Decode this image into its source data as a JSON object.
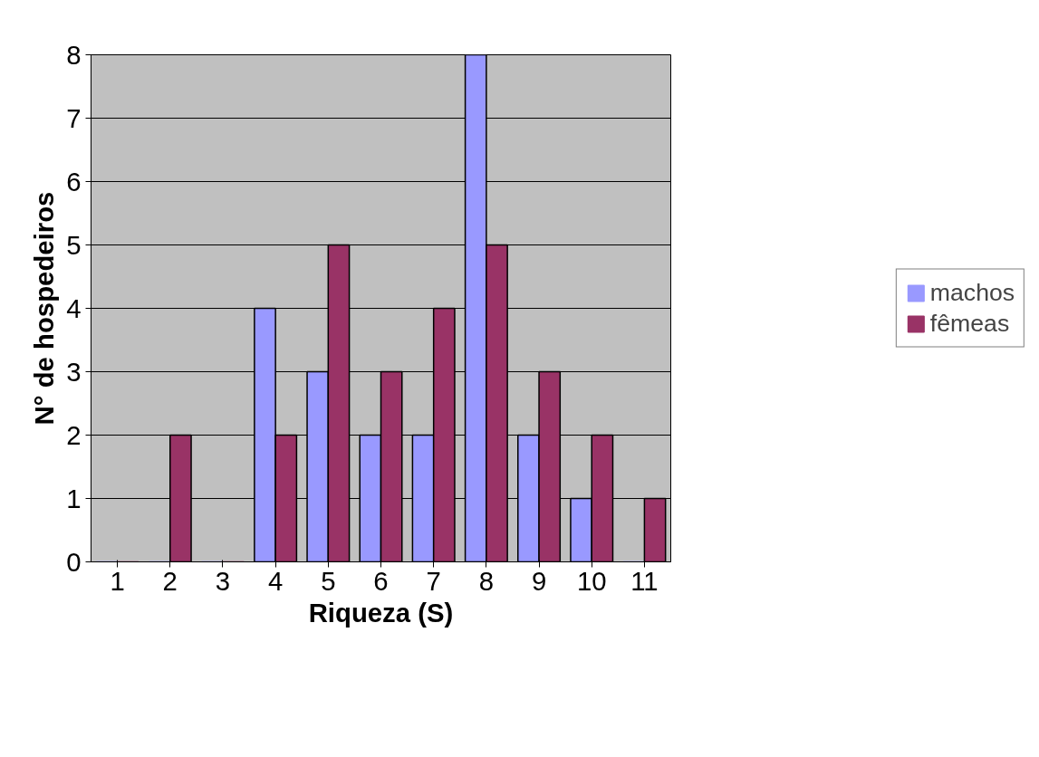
{
  "chart_data": {
    "type": "bar",
    "xlabel": "Riqueza (S)",
    "ylabel": "N° de hospedeiros",
    "categories": [
      "1",
      "2",
      "3",
      "4",
      "5",
      "6",
      "7",
      "8",
      "9",
      "10",
      "11"
    ],
    "series": [
      {
        "name": "machos",
        "color": "#9999ff",
        "values": [
          0,
          0,
          0,
          4,
          3,
          2,
          2,
          8,
          2,
          1,
          0
        ]
      },
      {
        "name": "fêmeas",
        "color": "#993366",
        "values": [
          0,
          2,
          0,
          2,
          5,
          3,
          4,
          5,
          3,
          2,
          1
        ]
      }
    ],
    "ylim": [
      0,
      8
    ],
    "yticks": [
      0,
      1,
      2,
      3,
      4,
      5,
      6,
      7,
      8
    ],
    "grid": "y",
    "legend": "right"
  }
}
